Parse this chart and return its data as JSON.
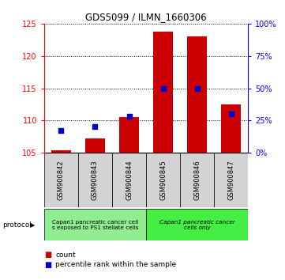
{
  "title": "GDS5099 / ILMN_1660306",
  "samples": [
    "GSM900842",
    "GSM900843",
    "GSM900844",
    "GSM900845",
    "GSM900846",
    "GSM900847"
  ],
  "count_values": [
    105.3,
    107.2,
    110.5,
    123.8,
    123.0,
    112.5
  ],
  "count_base": 105.0,
  "percentile_values": [
    17,
    20,
    28,
    50,
    50,
    30
  ],
  "ylim_left": [
    105,
    125
  ],
  "ylim_right": [
    0,
    100
  ],
  "yticks_left": [
    105,
    110,
    115,
    120,
    125
  ],
  "yticks_right": [
    0,
    25,
    50,
    75,
    100
  ],
  "bar_color": "#cc0000",
  "square_color": "#0000cc",
  "group1_label": "Capan1 pancreatic cancer cell\ns exposed to PS1 stellate cells",
  "group2_label": "Capan1 pancreatic cancer\ncells only",
  "group1_color": "#90EE90",
  "group2_color": "#44EE44",
  "group1_samples": [
    0,
    1,
    2
  ],
  "group2_samples": [
    3,
    4,
    5
  ],
  "legend_count_label": "count",
  "legend_pct_label": "percentile rank within the sample",
  "protocol_label": "protocol",
  "bar_width": 0.6,
  "background_color": "#ffffff"
}
